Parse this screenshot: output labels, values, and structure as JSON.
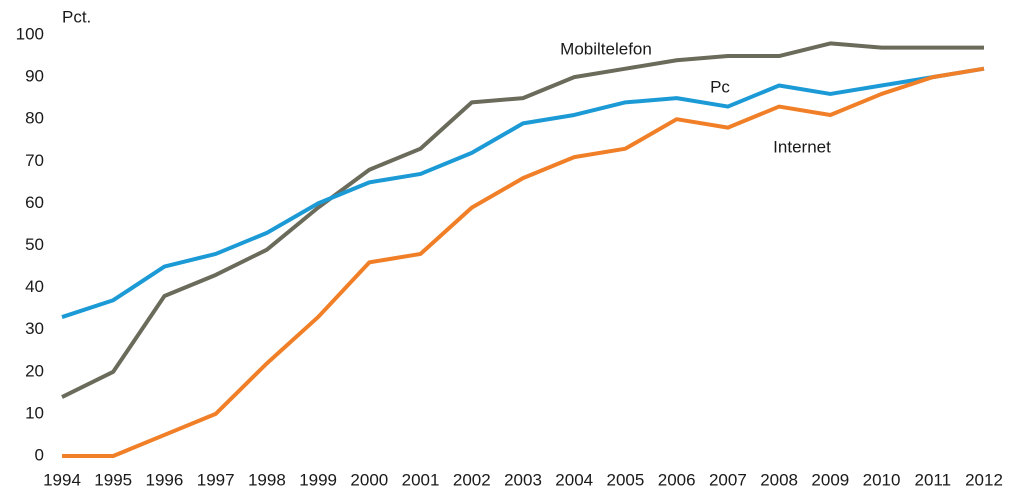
{
  "chart_data": {
    "type": "line",
    "y_label": "Pct.",
    "x": [
      1994,
      1995,
      1996,
      1997,
      1998,
      1999,
      2000,
      2001,
      2002,
      2003,
      2004,
      2005,
      2006,
      2007,
      2008,
      2009,
      2010,
      2011,
      2012
    ],
    "xlim": [
      1994,
      2012
    ],
    "xticks": [
      1994,
      1995,
      1996,
      1997,
      1998,
      1999,
      2000,
      2001,
      2002,
      2003,
      2004,
      2005,
      2006,
      2007,
      2008,
      2009,
      2010,
      2011,
      2012
    ],
    "ylim": [
      0,
      100
    ],
    "yticks": [
      0,
      10,
      20,
      30,
      40,
      50,
      60,
      70,
      80,
      90,
      100
    ],
    "grid": false,
    "series": [
      {
        "name": "Mobiltelefon",
        "color": "#6b6b5b",
        "values": [
          14,
          20,
          38,
          43,
          49,
          59,
          68,
          73,
          84,
          85,
          90,
          92,
          94,
          95,
          95,
          98,
          97,
          97,
          97
        ]
      },
      {
        "name": "Pc",
        "color": "#1b9ad6",
        "values": [
          33,
          37,
          45,
          48,
          53,
          60,
          65,
          67,
          72,
          79,
          81,
          84,
          85,
          83,
          88,
          86,
          88,
          90,
          92
        ]
      },
      {
        "name": "Internet",
        "color": "#f07f27",
        "values": [
          0,
          0,
          5,
          10,
          22,
          33,
          46,
          48,
          59,
          66,
          71,
          73,
          80,
          78,
          83,
          81,
          86,
          90,
          92
        ]
      }
    ]
  }
}
